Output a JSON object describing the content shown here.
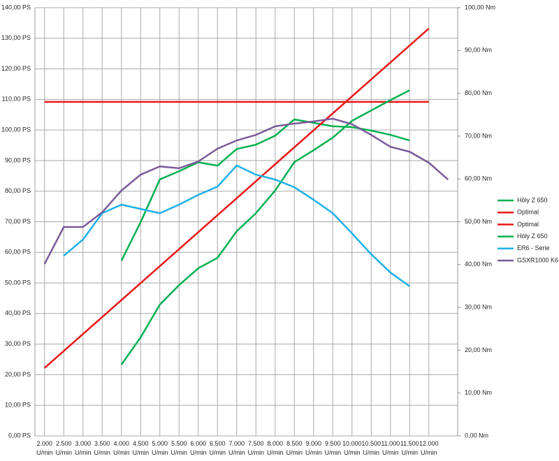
{
  "chart_data": {
    "type": "line",
    "xlim": [
      1750,
      12750
    ],
    "xticks": [
      {
        "value": 2000,
        "label": "2.000 U/min"
      },
      {
        "value": 2500,
        "label": "2.500 U/min"
      },
      {
        "value": 3000,
        "label": "3.000 U/min"
      },
      {
        "value": 3500,
        "label": "3.500 U/min"
      },
      {
        "value": 4000,
        "label": "4.000 U/min"
      },
      {
        "value": 4500,
        "label": "4.500 U/min"
      },
      {
        "value": 5000,
        "label": "5.000 U/min"
      },
      {
        "value": 5500,
        "label": "5.500 U/min"
      },
      {
        "value": 6000,
        "label": "6.000 U/min"
      },
      {
        "value": 6500,
        "label": "6.500 U/min"
      },
      {
        "value": 7000,
        "label": "7.000 U/min"
      },
      {
        "value": 7500,
        "label": "7.500 U/min"
      },
      {
        "value": 8000,
        "label": "8.000 U/min"
      },
      {
        "value": 8500,
        "label": "8.500 U/min"
      },
      {
        "value": 9000,
        "label": "9.000 U/min"
      },
      {
        "value": 9500,
        "label": "9.500 U/min"
      },
      {
        "value": 10000,
        "label": "10.000 U/min"
      },
      {
        "value": 10500,
        "label": "10.500 U/min"
      },
      {
        "value": 11000,
        "label": "11.000 U/min"
      },
      {
        "value": 11500,
        "label": "11.500 U/min"
      },
      {
        "value": 12000,
        "label": "12.000 U/min"
      }
    ],
    "ylim": [
      0,
      140
    ],
    "yticks": [
      {
        "value": 0,
        "label": "0,00 PS"
      },
      {
        "value": 10,
        "label": "10,00 PS"
      },
      {
        "value": 20,
        "label": "20,00 PS"
      },
      {
        "value": 30,
        "label": "30,00 PS"
      },
      {
        "value": 40,
        "label": "40,00 PS"
      },
      {
        "value": 50,
        "label": "50,00 PS"
      },
      {
        "value": 60,
        "label": "60,00 PS"
      },
      {
        "value": 70,
        "label": "70,00 PS"
      },
      {
        "value": 80,
        "label": "80,00 PS"
      },
      {
        "value": 90,
        "label": "90,00 PS"
      },
      {
        "value": 100,
        "label": "100,00 PS"
      },
      {
        "value": 110,
        "label": "110,00 PS"
      },
      {
        "value": 120,
        "label": "120,00 PS"
      },
      {
        "value": 130,
        "label": "130,00 PS"
      },
      {
        "value": 140,
        "label": "140,00 PS"
      }
    ],
    "y2lim": [
      0,
      100
    ],
    "y2ticks": [
      {
        "value": 0,
        "label": "0,00 Nm"
      },
      {
        "value": 10,
        "label": "10,00 Nm"
      },
      {
        "value": 20,
        "label": "20,00 Nm"
      },
      {
        "value": 30,
        "label": "30,00 Nm"
      },
      {
        "value": 40,
        "label": "40,00 Nm"
      },
      {
        "value": 50,
        "label": "50,00 Nm"
      },
      {
        "value": 60,
        "label": "60,00 Nm"
      },
      {
        "value": 70,
        "label": "70,00 Nm"
      },
      {
        "value": 80,
        "label": "80,00 Nm"
      },
      {
        "value": 90,
        "label": "90,00 Nm"
      },
      {
        "value": 100,
        "label": "100,00 Nm"
      }
    ],
    "grid": true,
    "legend": "right",
    "series": [
      {
        "name": "Höly Z 650",
        "color": "#00b050",
        "axis": "y2",
        "x": [
          4000,
          4500,
          5000,
          5500,
          6000,
          6500,
          7000,
          7500,
          8000,
          8500,
          9000,
          9500,
          10000,
          10500,
          11000,
          11500
        ],
        "values": [
          40.9,
          49.9,
          59.9,
          61.8,
          63.9,
          63.1,
          67.0,
          68.0,
          70.1,
          73.9,
          73.1,
          72.3,
          72.1,
          71.3,
          70.3,
          69.0
        ]
      },
      {
        "name": "Optimal",
        "color": "#e81818",
        "axis": "y2",
        "x": [
          2000,
          12000
        ],
        "values": [
          78,
          78
        ]
      },
      {
        "name": "Optimal",
        "color": "#e81818",
        "x": [
          2000,
          12000
        ],
        "values": [
          22.2,
          133.2
        ]
      },
      {
        "name": "Höly Z 650",
        "color": "#00b050",
        "x": [
          4000,
          4500,
          5000,
          5500,
          6000,
          6500,
          7000,
          7500,
          8000,
          8500,
          9000,
          9500,
          10000,
          10500,
          11000,
          11500
        ],
        "values": [
          23.3,
          32.2,
          42.9,
          49.3,
          54.8,
          58.2,
          66.9,
          72.8,
          80.2,
          89.5,
          93.4,
          97.5,
          103.0,
          106.4,
          109.8,
          113.0
        ]
      },
      {
        "name": "ER6 - Serie",
        "color": "#1fb0e8",
        "x": [
          2500,
          3000,
          3500,
          4000,
          4500,
          5000,
          5500,
          6000,
          6500,
          7000,
          7500,
          8000,
          8500,
          9000,
          9500,
          10000,
          10500,
          11000,
          11500
        ],
        "values": [
          58.9,
          64.2,
          72.8,
          75.6,
          74.2,
          72.8,
          75.6,
          78.8,
          81.5,
          88.4,
          85.4,
          83.8,
          81.3,
          77.2,
          72.8,
          66.2,
          59.4,
          53.4,
          48.9
        ]
      },
      {
        "name": "GSXR1000 K6",
        "color": "#7a5a9a",
        "x": [
          2000,
          2500,
          3000,
          3500,
          4000,
          4500,
          5000,
          5500,
          6000,
          6500,
          7000,
          7500,
          8000,
          8500,
          9000,
          9500,
          10000,
          10500,
          11000,
          11500,
          12000,
          12500
        ],
        "values": [
          56.2,
          68.3,
          68.3,
          73.1,
          80.2,
          85.4,
          88.1,
          87.5,
          89.7,
          93.9,
          96.6,
          98.4,
          101.2,
          102.1,
          102.8,
          103.7,
          101.9,
          98.4,
          94.5,
          92.9,
          89.3,
          83.8
        ]
      }
    ]
  }
}
